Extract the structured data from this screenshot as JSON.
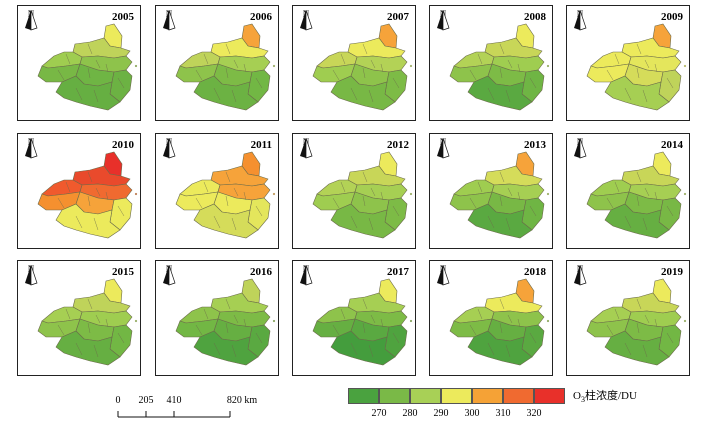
{
  "panels": [
    {
      "year": "2005",
      "colors": [
        "#ecea5c",
        "#bfd35a",
        "#9fcd50",
        "#8ec34b",
        "#78b845",
        "#6fb544",
        "#6cb243",
        "#66af42"
      ]
    },
    {
      "year": "2006",
      "colors": [
        "#f6a33a",
        "#ecea5c",
        "#bfd35a",
        "#a6cf53",
        "#8ec34b",
        "#7dbb46",
        "#72b744",
        "#6cb243"
      ]
    },
    {
      "year": "2007",
      "colors": [
        "#f6a33a",
        "#ecea5c",
        "#c8d658",
        "#b3d256",
        "#9fcd50",
        "#8ec34b",
        "#7dbb46",
        "#78b845"
      ]
    },
    {
      "year": "2008",
      "colors": [
        "#ecea5c",
        "#c8d658",
        "#b3d256",
        "#9fcd50",
        "#8ec34b",
        "#7dbb46",
        "#6fb544",
        "#5aa941"
      ]
    },
    {
      "year": "2009",
      "colors": [
        "#f6a33a",
        "#ecea5c",
        "#ecea5c",
        "#e4e65c",
        "#ecea5c",
        "#d5dc5a",
        "#bfd35a",
        "#a6cf53"
      ]
    },
    {
      "year": "2010",
      "colors": [
        "#e8302a",
        "#e94a2c",
        "#f05a2d",
        "#f06a30",
        "#f5902f",
        "#f6a33a",
        "#ecea5c",
        "#ecea5c"
      ]
    },
    {
      "year": "2011",
      "colors": [
        "#f5902f",
        "#f6a33a",
        "#ecea5c",
        "#f6a33a",
        "#ecea5c",
        "#ecea5c",
        "#e4e65c",
        "#d5dc5a"
      ]
    },
    {
      "year": "2012",
      "colors": [
        "#ecea5c",
        "#c8d658",
        "#b3d256",
        "#a6cf53",
        "#9fcd50",
        "#8ec34b",
        "#7dbb46",
        "#78b845"
      ]
    },
    {
      "year": "2013",
      "colors": [
        "#f6a33a",
        "#d5dc5a",
        "#9fcd50",
        "#a6cf53",
        "#8ec34b",
        "#78b845",
        "#6fb544",
        "#5aa941"
      ]
    },
    {
      "year": "2014",
      "colors": [
        "#ecea5c",
        "#c8d658",
        "#9fcd50",
        "#a6cf53",
        "#8ec34b",
        "#7dbb46",
        "#78b845",
        "#66af42"
      ]
    },
    {
      "year": "2015",
      "colors": [
        "#ecea5c",
        "#bfd35a",
        "#a6cf53",
        "#9fcd50",
        "#8ec34b",
        "#7dbb46",
        "#72b744",
        "#66af42"
      ]
    },
    {
      "year": "2016",
      "colors": [
        "#bfd35a",
        "#a6cf53",
        "#8ec34b",
        "#7dbb46",
        "#72b744",
        "#66af42",
        "#5aa941",
        "#4fa33f"
      ]
    },
    {
      "year": "2017",
      "colors": [
        "#ecea5c",
        "#a6cf53",
        "#8ec34b",
        "#7dbb46",
        "#66af42",
        "#5aa941",
        "#4fa33f",
        "#449d3d"
      ]
    },
    {
      "year": "2018",
      "colors": [
        "#f6a33a",
        "#ecea5c",
        "#a6cf53",
        "#8ec34b",
        "#7dbb46",
        "#66af42",
        "#5aa941",
        "#4fa33f"
      ]
    },
    {
      "year": "2019",
      "colors": [
        "#ecea5c",
        "#c8d658",
        "#a6cf53",
        "#9fcd50",
        "#8ec34b",
        "#7dbb46",
        "#72b744",
        "#66af42"
      ]
    }
  ],
  "north_label": "N",
  "scale_bar": {
    "ticks": [
      "0",
      "205",
      "410",
      "820"
    ],
    "tick_values": [
      0,
      205,
      410,
      820
    ],
    "unit": "km"
  },
  "legend": {
    "colors": [
      "#4aa23f",
      "#7ab947",
      "#a8d056",
      "#ecea5c",
      "#f5a236",
      "#f06a30",
      "#e8302a"
    ],
    "ticks": [
      "270",
      "280",
      "290",
      "300",
      "310",
      "320"
    ],
    "title_prefix": "O",
    "title_sub": "3",
    "title_suffix": "柱浓度/DU"
  }
}
